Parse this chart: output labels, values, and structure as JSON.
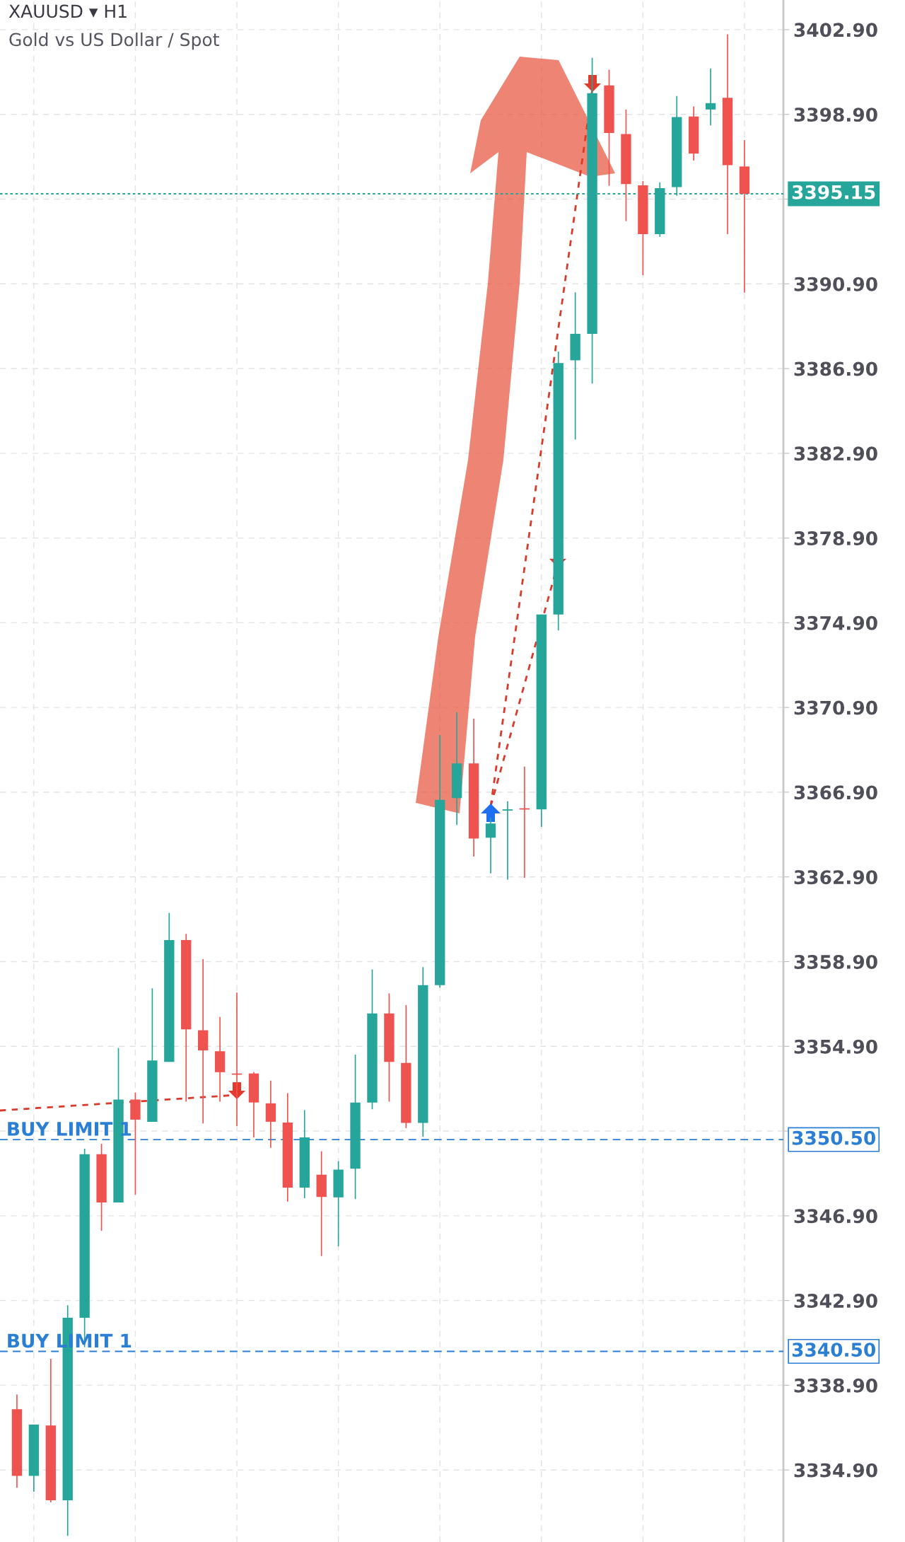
{
  "chart_data": {
    "type": "candlestick",
    "title": "XAUUSD ▾ H1",
    "subtitle": "Gold vs US Dollar / Spot",
    "categories": [
      null,
      null,
      null,
      null,
      null,
      null,
      null,
      null,
      null,
      null,
      null,
      null,
      null,
      null,
      null,
      null,
      null,
      null,
      null,
      null,
      null,
      null,
      null,
      null,
      null,
      null,
      null,
      null,
      null,
      null,
      null,
      null,
      null,
      null,
      null,
      null,
      null,
      null,
      null,
      null,
      null,
      null,
      null,
      null
    ],
    "ohlc": [
      [
        3337.77,
        3338.46,
        3334.06,
        3334.62
      ],
      [
        3334.62,
        3337.04,
        3333.87,
        3337.04
      ],
      [
        3337.0,
        3340.15,
        3333.37,
        3333.47
      ],
      [
        3333.47,
        3342.68,
        3331.79,
        3342.09
      ],
      [
        3342.09,
        3350.07,
        3340.7,
        3349.81
      ],
      [
        3349.81,
        3350.3,
        3346.19,
        3347.53
      ],
      [
        3347.53,
        3354.82,
        3347.53,
        3352.39
      ],
      [
        3352.39,
        3352.72,
        3347.9,
        3351.44
      ],
      [
        3351.34,
        3357.64,
        3351.34,
        3354.23
      ],
      [
        3354.17,
        3361.2,
        3354.17,
        3359.92
      ],
      [
        3359.92,
        3360.21,
        3352.29,
        3355.7
      ],
      [
        3355.66,
        3359.02,
        3351.26,
        3354.71
      ],
      [
        3354.67,
        3356.29,
        3352.29,
        3353.68
      ],
      [
        3353.62,
        3357.44,
        3351.14,
        3353.56
      ],
      [
        3353.62,
        3353.68,
        3350.6,
        3352.25
      ],
      [
        3352.21,
        3353.28,
        3350.11,
        3351.34
      ],
      [
        3351.3,
        3352.69,
        3347.57,
        3348.23
      ],
      [
        3348.23,
        3351.89,
        3347.73,
        3350.6
      ],
      [
        3348.84,
        3349.95,
        3345.0,
        3347.79
      ],
      [
        3347.77,
        3349.48,
        3345.46,
        3349.08
      ],
      [
        3349.12,
        3354.51,
        3347.69,
        3352.25
      ],
      [
        3352.25,
        3358.53,
        3351.93,
        3356.45
      ],
      [
        3356.45,
        3357.4,
        3352.29,
        3354.17
      ],
      [
        3354.12,
        3356.85,
        3351.04,
        3351.29
      ],
      [
        3351.29,
        3358.64,
        3350.63,
        3357.79
      ],
      [
        3357.79,
        3369.6,
        3357.67,
        3366.54
      ],
      [
        3366.62,
        3370.67,
        3365.35,
        3368.26
      ],
      [
        3368.26,
        3370.37,
        3363.86,
        3364.71
      ],
      [
        3364.75,
        3365.7,
        3363.07,
        3365.42
      ],
      [
        3366.03,
        3366.47,
        3362.77,
        3366.09
      ],
      [
        3366.14,
        3368.11,
        3362.86,
        3366.08
      ],
      [
        3366.09,
        3375.29,
        3365.26,
        3375.29
      ],
      [
        3375.29,
        3387.7,
        3374.54,
        3387.16
      ],
      [
        3387.29,
        3390.5,
        3383.55,
        3388.54
      ],
      [
        3388.54,
        3401.57,
        3386.19,
        3399.9
      ],
      [
        3400.27,
        3401.01,
        3395.53,
        3398.02
      ],
      [
        3397.97,
        3399.13,
        3393.86,
        3395.61
      ],
      [
        3395.55,
        3395.75,
        3391.31,
        3393.25
      ],
      [
        3393.25,
        3395.69,
        3393.12,
        3395.42
      ],
      [
        3395.47,
        3399.77,
        3395.06,
        3398.77
      ],
      [
        3398.8,
        3399.27,
        3396.72,
        3397.05
      ],
      [
        3399.13,
        3401.07,
        3398.38,
        3399.43
      ],
      [
        3399.68,
        3402.68,
        3393.25,
        3396.5
      ],
      [
        3396.44,
        3397.69,
        3390.48,
        3395.15
      ]
    ],
    "colors": [
      "#ef5350",
      "#26a69a",
      "#ef5350",
      "#26a69a",
      "#26a69a",
      "#ef5350",
      "#26a69a",
      "#ef5350",
      "#26a69a",
      "#26a69a",
      "#ef5350",
      "#ef5350",
      "#ef5350",
      "#ef5350",
      "#ef5350",
      "#ef5350",
      "#ef5350",
      "#26a69a",
      "#ef5350",
      "#26a69a",
      "#26a69a",
      "#26a69a",
      "#ef5350",
      "#ef5350",
      "#26a69a",
      "#26a69a",
      "#26a69a",
      "#ef5350",
      "#26a69a",
      "#26a69a",
      "#ef5350",
      "#26a69a",
      "#26a69a",
      "#26a69a",
      "#26a69a",
      "#ef5350",
      "#ef5350",
      "#ef5350",
      "#26a69a",
      "#26a69a",
      "#ef5350",
      "#26a69a",
      "#ef5350",
      "#ef5350"
    ],
    "ylim": [
      3331.5,
      3404.3
    ],
    "yticks": [
      {
        "value": 3334.9,
        "label": "3334.90"
      },
      {
        "value": 3338.9,
        "label": "3338.90"
      },
      {
        "value": 3342.9,
        "label": "3342.90"
      },
      {
        "value": 3346.9,
        "label": "3346.90"
      },
      {
        "value": 3350.9,
        "label": null
      },
      {
        "value": 3354.9,
        "label": "3354.90"
      },
      {
        "value": 3358.9,
        "label": "3358.90"
      },
      {
        "value": 3362.9,
        "label": "3362.90"
      },
      {
        "value": 3366.9,
        "label": "3366.90"
      },
      {
        "value": 3370.9,
        "label": "3370.90"
      },
      {
        "value": 3374.9,
        "label": "3374.90"
      },
      {
        "value": 3378.9,
        "label": "3378.90"
      },
      {
        "value": 3382.9,
        "label": "3382.90"
      },
      {
        "value": 3386.9,
        "label": "3386.90"
      },
      {
        "value": 3390.9,
        "label": "3390.90"
      },
      {
        "value": 3394.9,
        "label": null
      },
      {
        "value": 3398.9,
        "label": "3398.90"
      },
      {
        "value": 3402.9,
        "label": "3402.90"
      }
    ],
    "grid": true,
    "ref_lines": [
      {
        "axis": "y",
        "value": 3395.15,
        "label": "3395.15",
        "color": "#26a69a",
        "line_style": "dotted"
      },
      {
        "axis": "y",
        "value": 3350.5,
        "label": "3350.50",
        "color": "#2a7fd4",
        "line_style": "dashed"
      },
      {
        "axis": "y",
        "value": 3340.5,
        "label": "3340.50",
        "color": "#2a7fd4",
        "line_style": "dashed"
      }
    ],
    "annotations": [
      {
        "text": "BUY LIMIT 1",
        "y": 3350.5
      },
      {
        "text": "BUY LIMIT 1",
        "y": 3340.5
      }
    ]
  }
}
